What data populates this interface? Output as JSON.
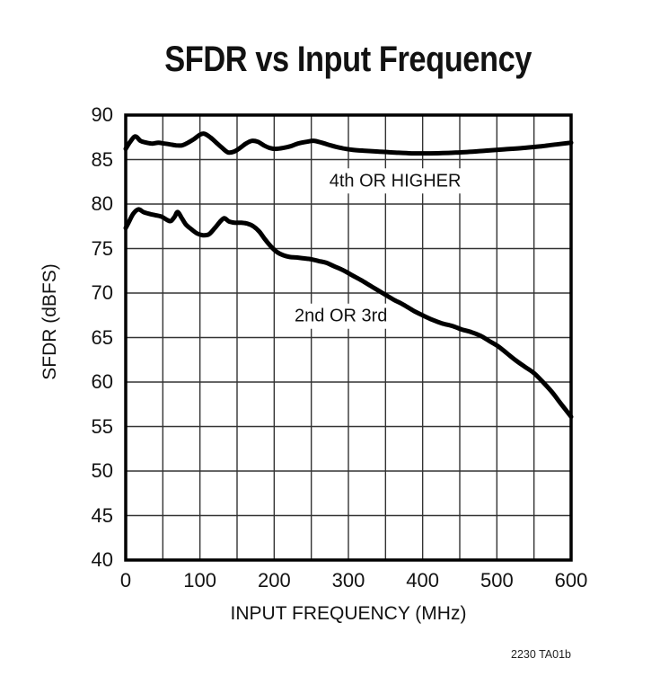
{
  "corner_note": "2230 TA01b",
  "colors": {
    "background": "#ffffff",
    "text": "#121212",
    "grid": "#333333",
    "frame": "#000000",
    "curve": "#000000"
  },
  "chart_data": {
    "type": "line",
    "title": "SFDR vs Input Frequency",
    "xlabel": "INPUT FREQUENCY (MHz)",
    "ylabel": "SFDR (dBFS)",
    "xlim": [
      0,
      600
    ],
    "ylim": [
      40,
      90
    ],
    "x_major_ticks": [
      0,
      100,
      200,
      300,
      400,
      500,
      600
    ],
    "x_grid_step": 50,
    "y_ticks": [
      40,
      45,
      50,
      55,
      60,
      65,
      70,
      75,
      80,
      85,
      90
    ],
    "y_grid_step": 5,
    "grid": true,
    "legend_position": "inline-annotations",
    "series": [
      {
        "name": "4th OR HIGHER",
        "label_pos": {
          "mhz": 363,
          "dbfs": 82.6
        },
        "points": [
          [
            0,
            86.2
          ],
          [
            6,
            87.0
          ],
          [
            13,
            87.6
          ],
          [
            20,
            87.1
          ],
          [
            28,
            86.9
          ],
          [
            36,
            86.8
          ],
          [
            44,
            86.9
          ],
          [
            52,
            86.8
          ],
          [
            60,
            86.7
          ],
          [
            68,
            86.6
          ],
          [
            76,
            86.6
          ],
          [
            84,
            86.9
          ],
          [
            92,
            87.3
          ],
          [
            100,
            87.8
          ],
          [
            106,
            87.9
          ],
          [
            114,
            87.5
          ],
          [
            122,
            86.9
          ],
          [
            130,
            86.3
          ],
          [
            138,
            85.8
          ],
          [
            146,
            85.9
          ],
          [
            154,
            86.3
          ],
          [
            162,
            86.8
          ],
          [
            170,
            87.1
          ],
          [
            178,
            87.0
          ],
          [
            186,
            86.6
          ],
          [
            194,
            86.3
          ],
          [
            202,
            86.2
          ],
          [
            212,
            86.3
          ],
          [
            222,
            86.5
          ],
          [
            232,
            86.8
          ],
          [
            244,
            87.0
          ],
          [
            254,
            87.1
          ],
          [
            264,
            86.9
          ],
          [
            276,
            86.6
          ],
          [
            290,
            86.3
          ],
          [
            305,
            86.1
          ],
          [
            320,
            86.0
          ],
          [
            340,
            85.9
          ],
          [
            360,
            85.8
          ],
          [
            385,
            85.7
          ],
          [
            410,
            85.7
          ],
          [
            435,
            85.75
          ],
          [
            460,
            85.85
          ],
          [
            485,
            86.0
          ],
          [
            510,
            86.15
          ],
          [
            535,
            86.3
          ],
          [
            560,
            86.5
          ],
          [
            580,
            86.7
          ],
          [
            600,
            86.9
          ]
        ]
      },
      {
        "name": "2nd OR 3rd",
        "label_pos": {
          "mhz": 290,
          "dbfs": 67.4
        },
        "points": [
          [
            0,
            77.3
          ],
          [
            5,
            78.1
          ],
          [
            10,
            78.9
          ],
          [
            17,
            79.4
          ],
          [
            24,
            79.1
          ],
          [
            32,
            78.9
          ],
          [
            40,
            78.75
          ],
          [
            48,
            78.6
          ],
          [
            56,
            78.2
          ],
          [
            61,
            78.1
          ],
          [
            66,
            78.6
          ],
          [
            70,
            79.1
          ],
          [
            75,
            78.5
          ],
          [
            81,
            77.7
          ],
          [
            88,
            77.2
          ],
          [
            96,
            76.7
          ],
          [
            104,
            76.5
          ],
          [
            112,
            76.6
          ],
          [
            120,
            77.3
          ],
          [
            128,
            78.1
          ],
          [
            133,
            78.4
          ],
          [
            139,
            78.05
          ],
          [
            147,
            77.9
          ],
          [
            156,
            77.9
          ],
          [
            164,
            77.8
          ],
          [
            172,
            77.5
          ],
          [
            180,
            76.9
          ],
          [
            188,
            76.0
          ],
          [
            196,
            75.2
          ],
          [
            204,
            74.6
          ],
          [
            212,
            74.25
          ],
          [
            221,
            74.05
          ],
          [
            230,
            74.0
          ],
          [
            240,
            73.9
          ],
          [
            250,
            73.8
          ],
          [
            260,
            73.6
          ],
          [
            270,
            73.4
          ],
          [
            281,
            73.0
          ],
          [
            292,
            72.6
          ],
          [
            305,
            72.0
          ],
          [
            318,
            71.4
          ],
          [
            332,
            70.7
          ],
          [
            346,
            70.0
          ],
          [
            360,
            69.3
          ],
          [
            374,
            68.7
          ],
          [
            388,
            68.0
          ],
          [
            400,
            67.5
          ],
          [
            413,
            67.0
          ],
          [
            426,
            66.6
          ],
          [
            440,
            66.3
          ],
          [
            453,
            65.9
          ],
          [
            466,
            65.6
          ],
          [
            478,
            65.2
          ],
          [
            490,
            64.6
          ],
          [
            502,
            64.0
          ],
          [
            514,
            63.2
          ],
          [
            526,
            62.4
          ],
          [
            538,
            61.7
          ],
          [
            550,
            61.0
          ],
          [
            562,
            60.0
          ],
          [
            574,
            58.9
          ],
          [
            586,
            57.6
          ],
          [
            600,
            56.1
          ]
        ]
      }
    ]
  }
}
